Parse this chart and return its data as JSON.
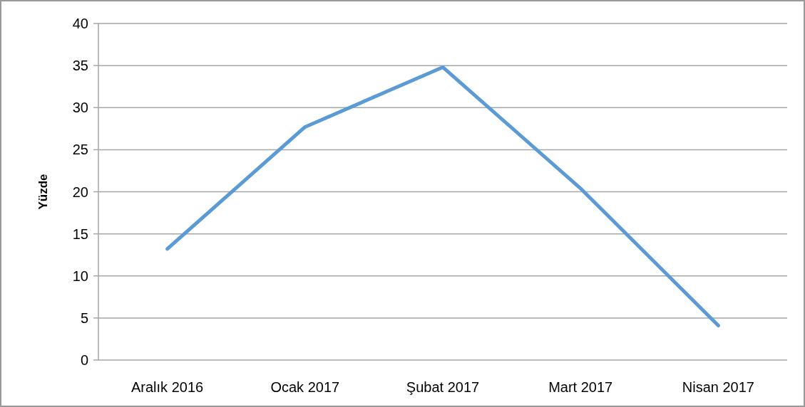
{
  "chart_data": {
    "type": "line",
    "ylabel": "Yüzde",
    "categories": [
      "Aralık 2016",
      "Ocak 2017",
      "Şubat 2017",
      "Mart 2017",
      "Nisan 2017"
    ],
    "series": [
      {
        "color": "#5b9bd5",
        "values": [
          13.2,
          27.7,
          34.8,
          20.4,
          4.1
        ]
      }
    ],
    "ylim": [
      0,
      40
    ],
    "yticks": [
      0,
      5,
      10,
      15,
      20,
      25,
      30,
      35,
      40
    ],
    "grid": "y",
    "marker": "none",
    "line_style": "solid"
  }
}
